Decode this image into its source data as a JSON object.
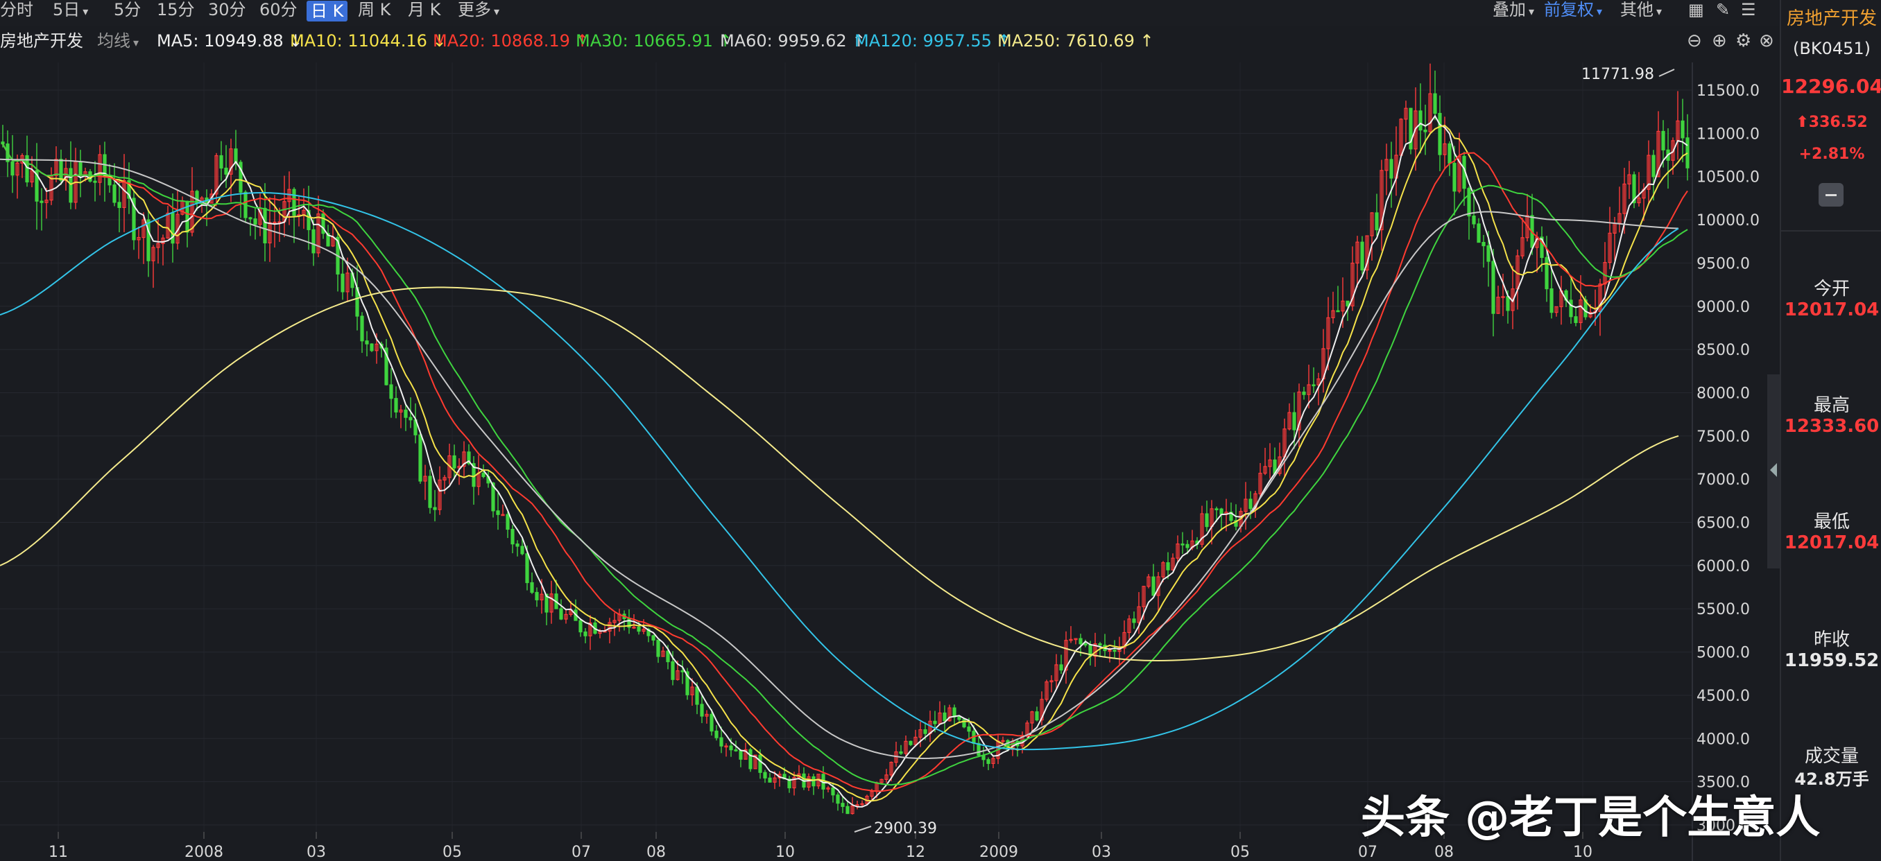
{
  "toolbar": {
    "periods": [
      "分时",
      "5日",
      "5分",
      "15分",
      "30分",
      "60分",
      "日 K",
      "周 K",
      "月 K",
      "更多"
    ],
    "active_period": "日 K",
    "overlay_label": "叠加",
    "adjust_label": "前复权",
    "other_label": "其他"
  },
  "ma_bar": {
    "sector_name": "房地产开发",
    "line_type": "均线",
    "ma5": "MA5: 10949.88 ↓",
    "ma10": "MA10: 11044.16 ↓",
    "ma20": "MA20: 10868.19 ↑",
    "ma30": "MA30: 10665.91 ↑",
    "ma60": "MA60: 9959.62 ↑",
    "ma120": "MA120: 9957.55 ↑",
    "ma250": "MA250: 7610.69 ↑"
  },
  "colors": {
    "ma5": "#f0f0f0",
    "ma10": "#f5e24a",
    "ma20": "#ff3b30",
    "ma30": "#3fd43f",
    "ma60": "#c8c8c8",
    "ma120": "#33c4e8",
    "ma250": "#f5eb8c",
    "up": "#ff3b3b",
    "down": "#3fd43f",
    "background": "#1a1c21",
    "accent": "#3a6fd8"
  },
  "chart_data": {
    "type": "candlestick",
    "y_ticks": [
      "11500.0",
      "11000.0",
      "10500.0",
      "10000.0",
      "9500.0",
      "9000.0",
      "8500.0",
      "8000.0",
      "7500.0",
      "7000.0",
      "6500.0",
      "6000.0",
      "5500.0",
      "5000.0",
      "4500.0",
      "4000.0",
      "3500.0",
      "3000.0"
    ],
    "ylim": [
      2800,
      12000
    ],
    "x_ticks": [
      "11",
      "2008",
      "03",
      "05",
      "07",
      "08",
      "10",
      "12",
      "2009",
      "03",
      "05",
      "07",
      "08",
      "10"
    ],
    "annotations": {
      "high_label": "11771.98",
      "low_label": "2900.39"
    },
    "ma_series_approx": {
      "ma250": [
        6000,
        7200,
        8400,
        9100,
        9200,
        8900,
        7900,
        6700,
        5600,
        5000,
        4920,
        5200,
        6000,
        6700,
        7500
      ],
      "ma120": [
        8900,
        9800,
        10300,
        10100,
        9400,
        8200,
        6500,
        4900,
        4000,
        3900,
        4200,
        5100,
        6600,
        8300,
        9900
      ],
      "ma60": [
        10700,
        10600,
        10000,
        9400,
        7600,
        6100,
        5200,
        4000,
        3800,
        4400,
        5800,
        7800,
        9900,
        10000,
        9900
      ]
    }
  },
  "sidebar": {
    "name": "房地产开发",
    "code": "(BK0451)",
    "price": "12296.04",
    "change": "⬆336.52",
    "change_pct": "+2.81%",
    "open_label": "今开",
    "open_value": "12017.04",
    "high_label": "最高",
    "high_value": "12333.60",
    "low_label": "最低",
    "low_value": "12017.04",
    "prev_close_label": "昨收",
    "prev_close_value": "11959.52",
    "volume_label": "成交量",
    "volume_value": "42.8万手"
  },
  "watermark": "头条 @老丁是个生意人"
}
